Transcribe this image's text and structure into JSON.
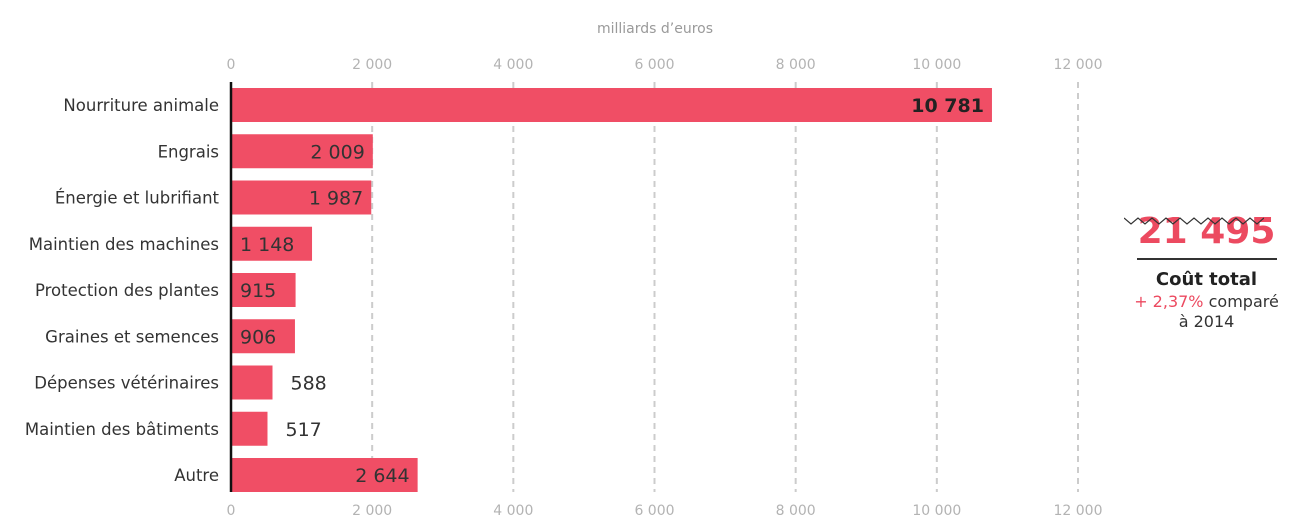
{
  "chart_data": {
    "type": "bar",
    "orientation": "horizontal",
    "title": "",
    "axis_unit_label": "milliards d’euros",
    "xlim": [
      0,
      12000
    ],
    "x_ticks": [
      0,
      2000,
      4000,
      6000,
      8000,
      10000,
      12000
    ],
    "x_tick_labels": [
      "0",
      "2 000",
      "4 000",
      "6 000",
      "8 000",
      "10 000",
      "12 000"
    ],
    "grid": true,
    "categories": [
      "Nourriture animale",
      "Engrais",
      "Énergie et lubrifiant",
      "Maintien des machines",
      "Protection des plantes",
      "Graines et semences",
      "Dépenses vétérinaires",
      "Maintien des bâtiments",
      "Autre"
    ],
    "values": [
      10781,
      2009,
      1987,
      1148,
      915,
      906,
      588,
      517,
      2644
    ],
    "value_labels": [
      "10 781",
      "2 009",
      "1 987",
      "1 148",
      "915",
      "906",
      "588",
      "517",
      "2 644"
    ],
    "bar_color": "#f04e65"
  },
  "summary": {
    "total": "21 495",
    "total_label": "Coût total",
    "change_value": "+ 2,37%",
    "change_text": "comparé",
    "change_year": "à 2014",
    "accent_color": "#ec4a60"
  }
}
